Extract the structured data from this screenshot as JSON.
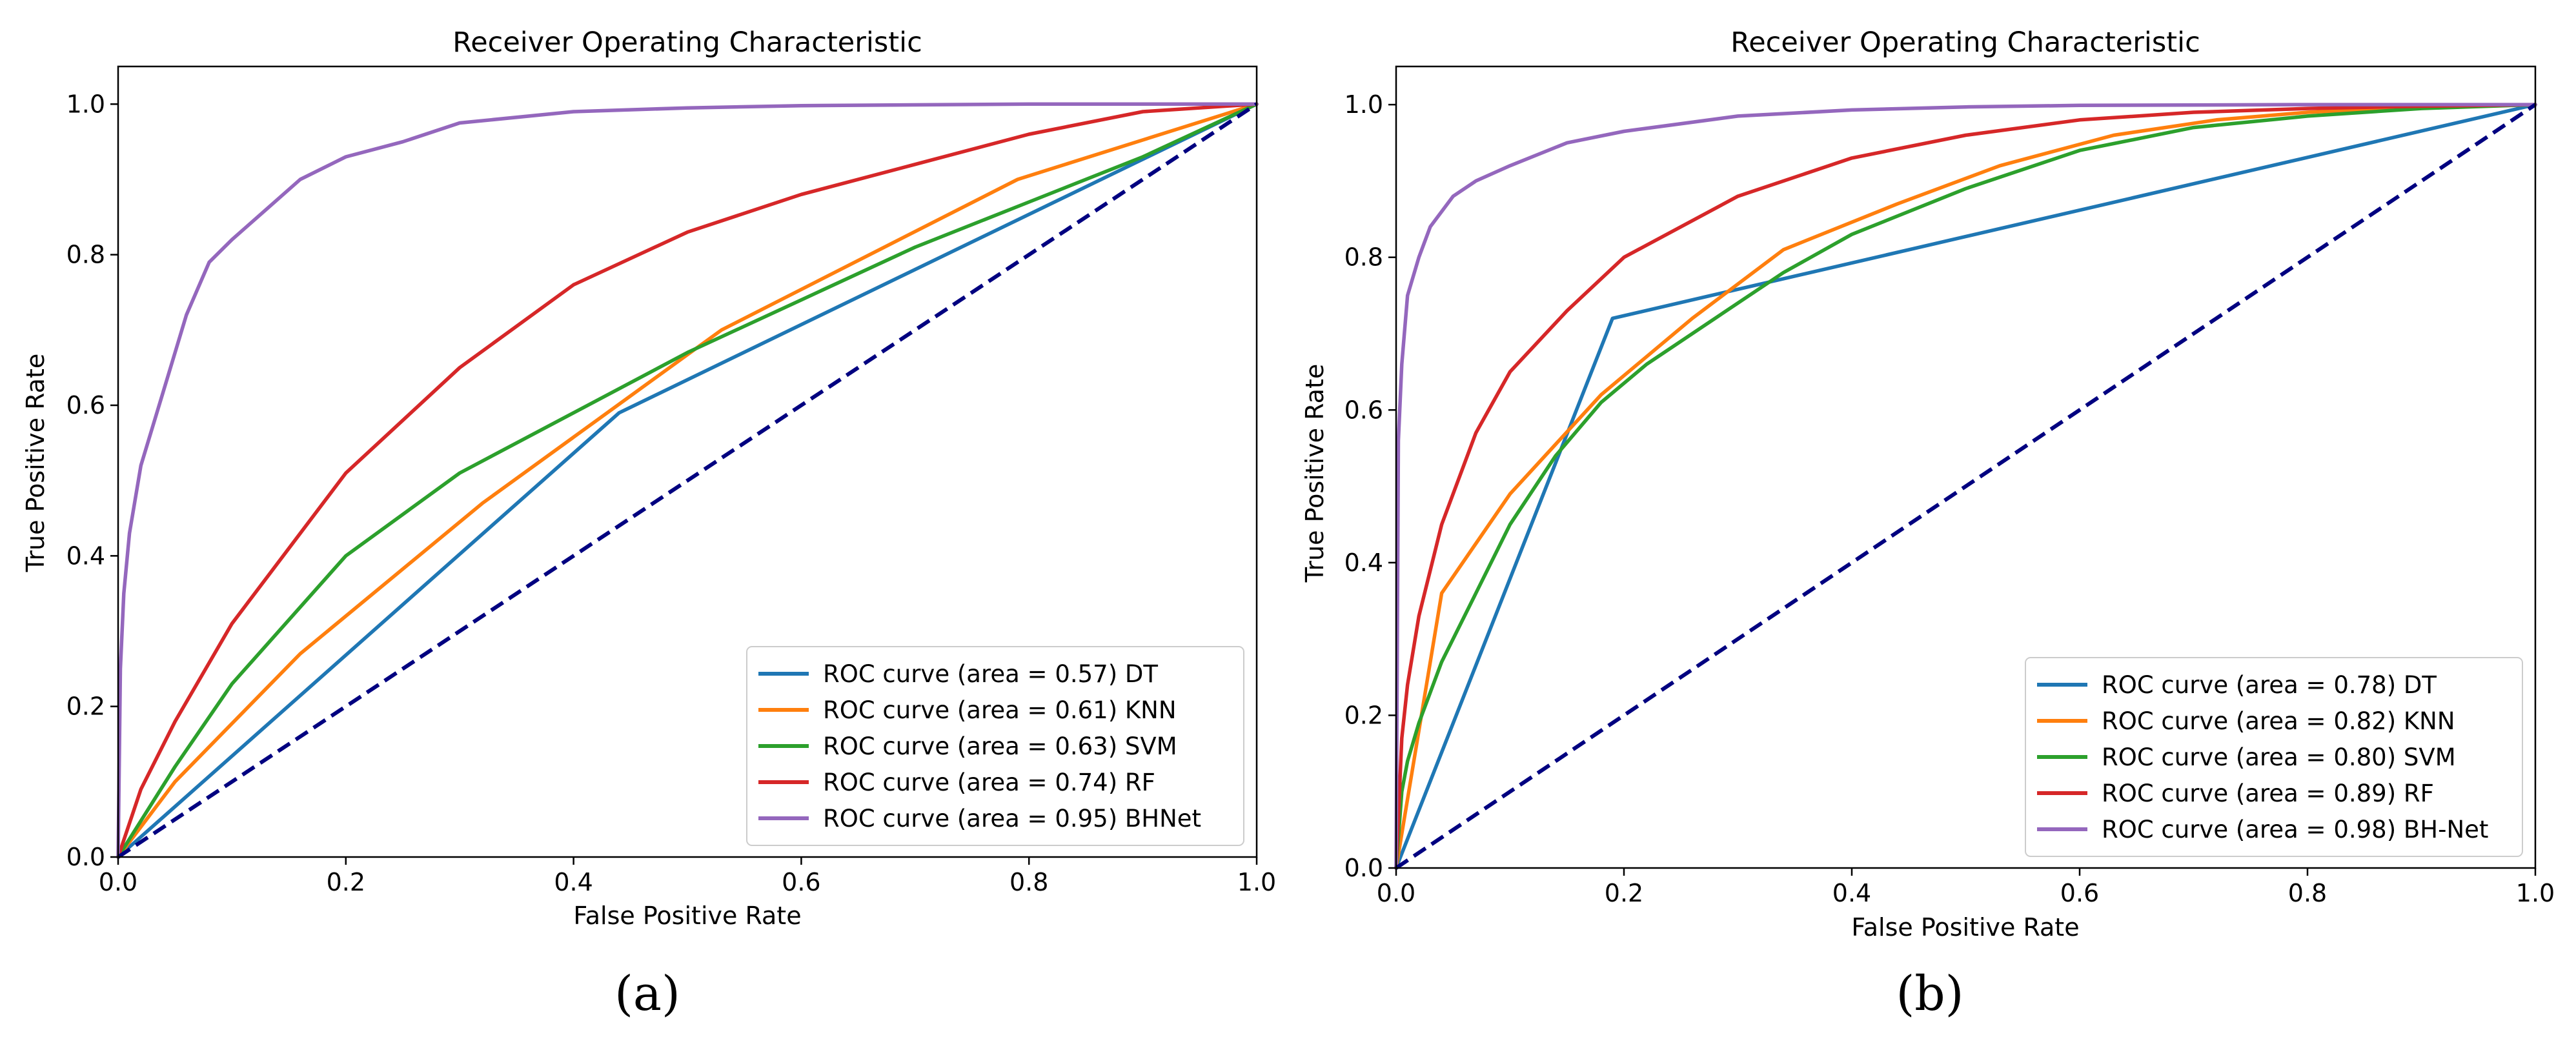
{
  "chart_data": [
    {
      "id": "a",
      "type": "line",
      "title": "Receiver Operating Characteristic",
      "xlabel": "False Positive Rate",
      "ylabel": "True Positive Rate",
      "xlim": [
        0,
        1
      ],
      "ylim": [
        0,
        1.05
      ],
      "xticks": [
        "0.0",
        "0.2",
        "0.4",
        "0.6",
        "0.8",
        "1.0"
      ],
      "yticks": [
        "0.0",
        "0.2",
        "0.4",
        "0.6",
        "0.8",
        "1.0"
      ],
      "grid": false,
      "legend_position": "bottom-right",
      "caption": "(a)",
      "chance_line": {
        "x": [
          0,
          1
        ],
        "y": [
          0,
          1
        ],
        "color": "#000080",
        "style": "dashed"
      },
      "series": [
        {
          "name": "ROC curve (area = 0.57) DT",
          "color": "#1f77b4",
          "x": [
            0,
            0.44,
            1
          ],
          "y": [
            0,
            0.59,
            1
          ]
        },
        {
          "name": "ROC curve (area = 0.61) KNN",
          "color": "#ff7f0e",
          "x": [
            0,
            0.05,
            0.16,
            0.32,
            0.53,
            0.79,
            1
          ],
          "y": [
            0,
            0.1,
            0.27,
            0.47,
            0.7,
            0.9,
            1
          ]
        },
        {
          "name": "ROC curve (area = 0.63) SVM",
          "color": "#2ca02c",
          "x": [
            0,
            0.05,
            0.1,
            0.2,
            0.3,
            0.4,
            0.5,
            0.6,
            0.7,
            0.8,
            0.9,
            1
          ],
          "y": [
            0,
            0.12,
            0.23,
            0.4,
            0.51,
            0.59,
            0.67,
            0.74,
            0.81,
            0.87,
            0.93,
            1
          ]
        },
        {
          "name": "ROC curve (area = 0.74) RF",
          "color": "#d62728",
          "x": [
            0,
            0.02,
            0.05,
            0.1,
            0.2,
            0.3,
            0.4,
            0.5,
            0.6,
            0.7,
            0.8,
            0.9,
            1
          ],
          "y": [
            0,
            0.09,
            0.18,
            0.31,
            0.51,
            0.65,
            0.76,
            0.83,
            0.88,
            0.92,
            0.96,
            0.99,
            1
          ]
        },
        {
          "name": "ROC curve (area = 0.95) BHNet",
          "color": "#9467bd",
          "x": [
            0,
            0.002,
            0.005,
            0.01,
            0.02,
            0.04,
            0.06,
            0.08,
            0.1,
            0.13,
            0.16,
            0.2,
            0.25,
            0.3,
            0.4,
            0.5,
            0.6,
            0.8,
            1
          ],
          "y": [
            0,
            0.25,
            0.35,
            0.43,
            0.52,
            0.62,
            0.72,
            0.79,
            0.82,
            0.86,
            0.9,
            0.93,
            0.95,
            0.975,
            0.99,
            0.995,
            0.998,
            1.0,
            1.0
          ]
        }
      ]
    },
    {
      "id": "b",
      "type": "line",
      "title": "Receiver Operating Characteristic",
      "xlabel": "False Positive Rate",
      "ylabel": "True Positive Rate",
      "xlim": [
        0,
        1
      ],
      "ylim": [
        0,
        1.05
      ],
      "xticks": [
        "0.0",
        "0.2",
        "0.4",
        "0.6",
        "0.8",
        "1.0"
      ],
      "yticks": [
        "0.0",
        "0.2",
        "0.4",
        "0.6",
        "0.8",
        "1.0"
      ],
      "grid": false,
      "legend_position": "bottom-right",
      "caption": "(b)",
      "chance_line": {
        "x": [
          0,
          1
        ],
        "y": [
          0,
          1
        ],
        "color": "#000080",
        "style": "dashed"
      },
      "series": [
        {
          "name": "ROC curve (area = 0.78) DT",
          "color": "#1f77b4",
          "x": [
            0,
            0.19,
            1
          ],
          "y": [
            0,
            0.72,
            1
          ]
        },
        {
          "name": "ROC curve (area = 0.82) KNN",
          "color": "#ff7f0e",
          "x": [
            0,
            0.04,
            0.1,
            0.18,
            0.26,
            0.34,
            0.44,
            0.53,
            0.63,
            0.72,
            0.8,
            0.9,
            1
          ],
          "y": [
            0,
            0.36,
            0.49,
            0.62,
            0.72,
            0.81,
            0.87,
            0.92,
            0.96,
            0.98,
            0.99,
            0.997,
            1
          ]
        },
        {
          "name": "ROC curve (area = 0.80) SVM",
          "color": "#2ca02c",
          "x": [
            0,
            0.005,
            0.01,
            0.02,
            0.04,
            0.07,
            0.1,
            0.14,
            0.18,
            0.22,
            0.28,
            0.34,
            0.4,
            0.5,
            0.6,
            0.7,
            0.8,
            0.9,
            1
          ],
          "y": [
            0,
            0.1,
            0.14,
            0.19,
            0.27,
            0.36,
            0.45,
            0.54,
            0.61,
            0.66,
            0.72,
            0.78,
            0.83,
            0.89,
            0.94,
            0.97,
            0.985,
            0.995,
            1
          ]
        },
        {
          "name": "ROC curve (area = 0.89) RF",
          "color": "#d62728",
          "x": [
            0,
            0.005,
            0.01,
            0.02,
            0.04,
            0.07,
            0.1,
            0.15,
            0.2,
            0.3,
            0.4,
            0.5,
            0.6,
            0.7,
            0.8,
            0.9,
            1
          ],
          "y": [
            0,
            0.17,
            0.24,
            0.33,
            0.45,
            0.57,
            0.65,
            0.73,
            0.8,
            0.88,
            0.93,
            0.96,
            0.98,
            0.99,
            0.995,
            0.998,
            1
          ]
        },
        {
          "name": "ROC curve (area = 0.98) BH-Net",
          "color": "#9467bd",
          "x": [
            0,
            0.002,
            0.005,
            0.01,
            0.02,
            0.03,
            0.05,
            0.07,
            0.1,
            0.15,
            0.2,
            0.3,
            0.4,
            0.5,
            0.6,
            0.8,
            1
          ],
          "y": [
            0,
            0.56,
            0.66,
            0.75,
            0.8,
            0.84,
            0.88,
            0.9,
            0.92,
            0.95,
            0.965,
            0.985,
            0.993,
            0.997,
            0.999,
            1.0,
            1.0
          ]
        }
      ]
    }
  ]
}
